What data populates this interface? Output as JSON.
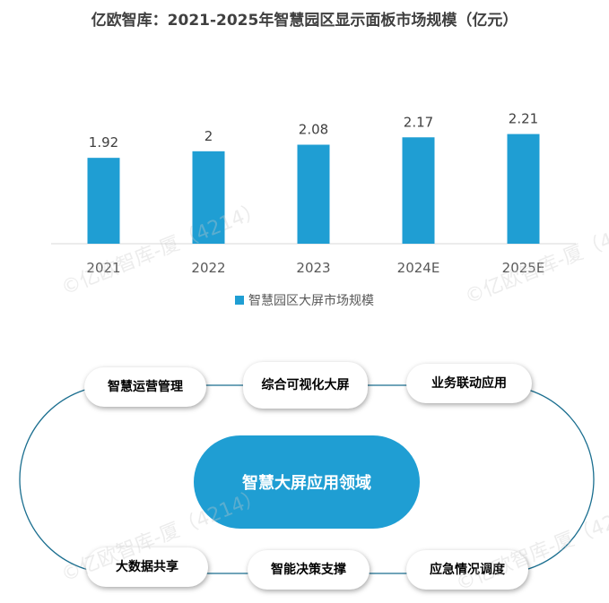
{
  "title": "亿欧智库：2021-2025年智慧园区显示面板市场规模（亿元）",
  "chart_data": {
    "type": "bar",
    "categories": [
      "2021",
      "2022",
      "2023",
      "2024E",
      "2025E"
    ],
    "series": [
      {
        "name": "智慧园区大屏市场规模",
        "values": [
          1.92,
          2,
          2.08,
          2.17,
          2.21
        ]
      }
    ],
    "value_labels": [
      "1.92",
      "2",
      "2.08",
      "2.17",
      "2.21"
    ],
    "bar_color": "#1f9ed3",
    "ylim": [
      0,
      2.5
    ],
    "grid": false,
    "legend_position": "bottom"
  },
  "diagram": {
    "center": "智慧大屏应用领域",
    "nodes": [
      "智慧运营管理",
      "综合可视化大屏",
      "业务联动应用",
      "大数据共享",
      "智能决策支撑",
      "应急情况调度"
    ],
    "ring_color": "#1a6e8f",
    "accent_color": "#1f9ed3"
  },
  "watermark": "©亿欧智库-厦（4214）"
}
